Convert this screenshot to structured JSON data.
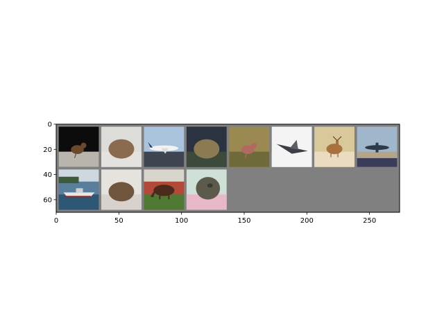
{
  "figure": {
    "background": "#ffffff",
    "grid_background": "#808080",
    "x_ticks": [
      0,
      50,
      100,
      150,
      200,
      250
    ],
    "y_ticks": [
      0,
      20,
      40,
      60
    ],
    "x_range": [
      0,
      274
    ],
    "y_range": [
      70,
      0
    ],
    "grid": "off"
  },
  "image_grid": {
    "rows": 2,
    "columns": 8,
    "tiles": [
      {
        "subject": "bird",
        "bg": "#0c0c0c",
        "ground": "#b9b5ad",
        "accent": "#6b4a2c",
        "shape": "bird"
      },
      {
        "subject": "frog",
        "bg": "#dcdcd8",
        "ground": "#e3e2df",
        "accent": "#8a6b4f",
        "shape": "frog"
      },
      {
        "subject": "airplane",
        "bg": "#a9c3dc",
        "ground": "#3e4450",
        "accent": "#f2f2f2",
        "shape": "plane"
      },
      {
        "subject": "frog",
        "bg": "#2c3340",
        "ground": "#3b4a3a",
        "accent": "#8b7a52",
        "shape": "frog"
      },
      {
        "subject": "bird",
        "bg": "#9a8a52",
        "ground": "#6f6a3a",
        "accent": "#b06a60",
        "shape": "bird"
      },
      {
        "subject": "airplane",
        "bg": "#f4f4f4",
        "ground": "#f4f4f4",
        "accent": "#3c3f46",
        "shape": "jet"
      },
      {
        "subject": "deer",
        "bg": "#d9c99a",
        "ground": "#e9dcc0",
        "accent": "#a8723e",
        "shape": "deer"
      },
      {
        "subject": "airplane",
        "bg": "#9fb6cb",
        "ground": "#b4a58a",
        "accent": "#2d3a4e",
        "shape": "plane2"
      },
      {
        "subject": "ship",
        "bg": "#5a7f9c",
        "ground": "#2e5776",
        "accent": "#e6e6e6",
        "shape": "ship"
      },
      {
        "subject": "frog",
        "bg": "#e6e3df",
        "ground": "#d7d2cc",
        "accent": "#6e553c",
        "shape": "frog"
      },
      {
        "subject": "horse",
        "bg": "#b24a3a",
        "ground": "#4f7a34",
        "accent": "#4a2a1a",
        "shape": "horse"
      },
      {
        "subject": "frog",
        "bg": "#cfe0d6",
        "ground": "#e7b9c8",
        "accent": "#5c5a4a",
        "shape": "frog2"
      }
    ]
  }
}
